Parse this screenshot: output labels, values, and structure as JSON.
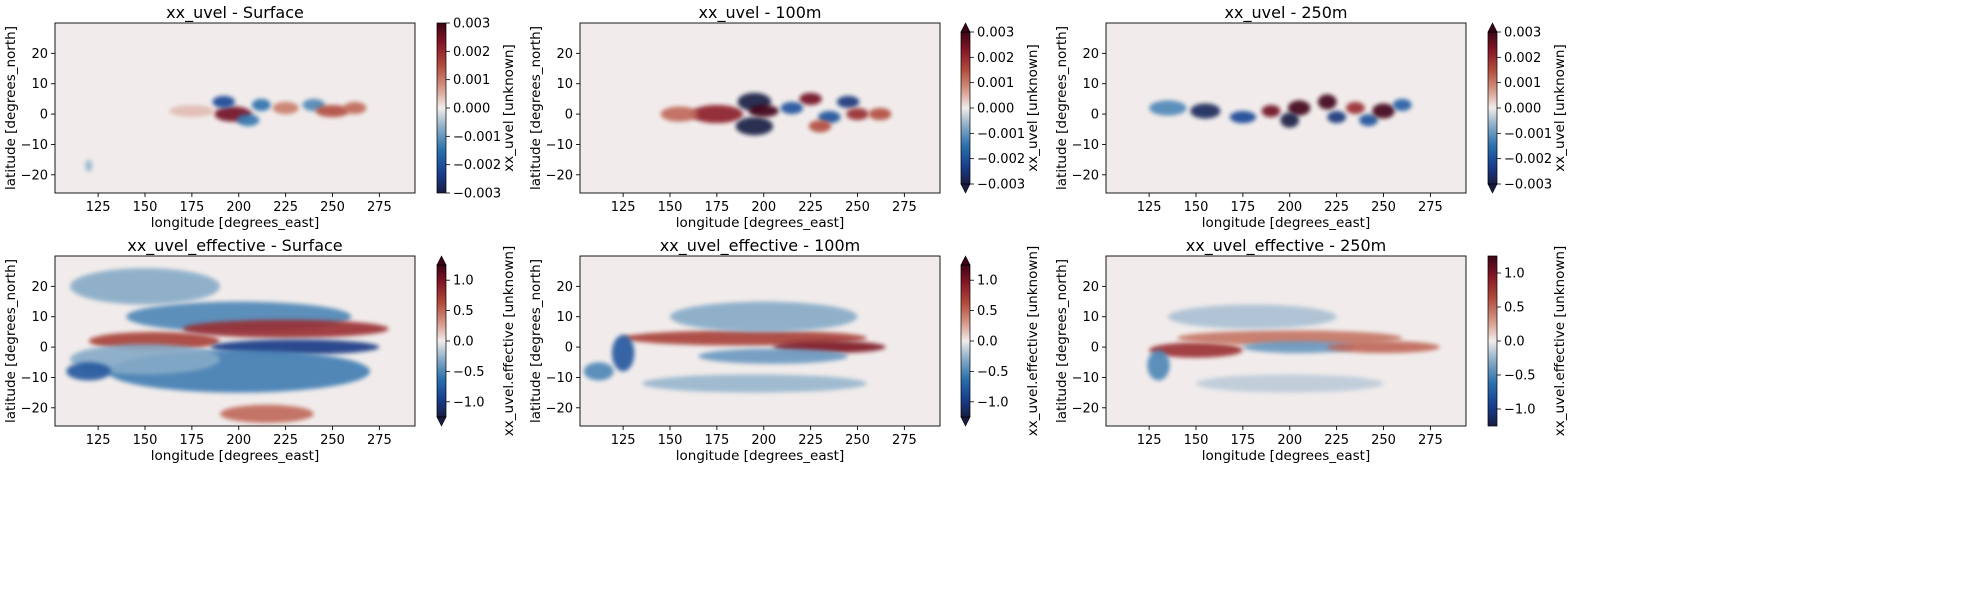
{
  "chart_data": [
    {
      "type": "heatmap",
      "title": "xx_uvel - Surface",
      "xlabel": "longitude [degrees_east]",
      "ylabel": "latitude [degrees_north]",
      "xlim": [
        102,
        294
      ],
      "ylim": [
        -26,
        30
      ],
      "xticks": [
        125,
        150,
        175,
        200,
        225,
        250,
        275
      ],
      "yticks": [
        -20,
        -10,
        0,
        10,
        20
      ],
      "colorbar": {
        "label": "xx_uvel [unknown]",
        "range": [
          -0.003,
          0.003
        ],
        "ticks": [
          "0.003",
          "0.002",
          "0.001",
          "0.000",
          "−0.001",
          "−0.002",
          "−0.003"
        ],
        "extend": "neither"
      },
      "features": [
        {
          "lon": 197,
          "lat": 0,
          "value": 0.0025,
          "w": 10,
          "h": 2.5
        },
        {
          "lon": 192,
          "lat": 4,
          "value": -0.0022,
          "w": 6,
          "h": 2
        },
        {
          "lon": 212,
          "lat": 3,
          "value": -0.0015,
          "w": 5,
          "h": 2
        },
        {
          "lon": 205,
          "lat": -2,
          "value": -0.0014,
          "w": 6,
          "h": 2
        },
        {
          "lon": 225,
          "lat": 2,
          "value": 0.001,
          "w": 7,
          "h": 2
        },
        {
          "lon": 240,
          "lat": 3,
          "value": -0.0012,
          "w": 6,
          "h": 2
        },
        {
          "lon": 250,
          "lat": 1,
          "value": 0.0015,
          "w": 9,
          "h": 2
        },
        {
          "lon": 262,
          "lat": 2,
          "value": 0.0012,
          "w": 6,
          "h": 2
        },
        {
          "lon": 175,
          "lat": 1,
          "value": 0.0004,
          "w": 12,
          "h": 2
        },
        {
          "lon": 120,
          "lat": -17,
          "value": -0.0006,
          "w": 2,
          "h": 2
        }
      ]
    },
    {
      "type": "heatmap",
      "title": "xx_uvel - 100m",
      "xlabel": "longitude [degrees_east]",
      "ylabel": "latitude [degrees_north]",
      "xlim": [
        102,
        294
      ],
      "ylim": [
        -26,
        30
      ],
      "xticks": [
        125,
        150,
        175,
        200,
        225,
        250,
        275
      ],
      "yticks": [
        -20,
        -10,
        0,
        10,
        20
      ],
      "colorbar": {
        "label": "xx_uvel [unknown]",
        "range": [
          -0.003,
          0.003
        ],
        "ticks": [
          "0.003",
          "0.002",
          "0.001",
          "0.000",
          "−0.001",
          "−0.002",
          "−0.003"
        ],
        "extend": "both"
      },
      "features": [
        {
          "lon": 175,
          "lat": 0,
          "value": 0.0022,
          "w": 14,
          "h": 3
        },
        {
          "lon": 155,
          "lat": 0,
          "value": 0.0012,
          "w": 10,
          "h": 2.5
        },
        {
          "lon": 195,
          "lat": 4,
          "value": -0.003,
          "w": 9,
          "h": 3
        },
        {
          "lon": 195,
          "lat": -4,
          "value": -0.003,
          "w": 10,
          "h": 3
        },
        {
          "lon": 200,
          "lat": 1,
          "value": 0.003,
          "w": 8,
          "h": 2
        },
        {
          "lon": 215,
          "lat": 2,
          "value": -0.002,
          "w": 6,
          "h": 2
        },
        {
          "lon": 225,
          "lat": 5,
          "value": 0.0025,
          "w": 6,
          "h": 2
        },
        {
          "lon": 235,
          "lat": -1,
          "value": -0.002,
          "w": 6,
          "h": 2
        },
        {
          "lon": 245,
          "lat": 4,
          "value": -0.0025,
          "w": 6,
          "h": 2
        },
        {
          "lon": 250,
          "lat": 0,
          "value": 0.002,
          "w": 6,
          "h": 2
        },
        {
          "lon": 262,
          "lat": 0,
          "value": 0.0015,
          "w": 6,
          "h": 2
        },
        {
          "lon": 230,
          "lat": -4,
          "value": 0.0015,
          "w": 6,
          "h": 2
        }
      ]
    },
    {
      "type": "heatmap",
      "title": "xx_uvel - 250m",
      "xlabel": "longitude [degrees_east]",
      "ylabel": "latitude [degrees_north]",
      "xlim": [
        102,
        294
      ],
      "ylim": [
        -26,
        30
      ],
      "xticks": [
        125,
        150,
        175,
        200,
        225,
        250,
        275
      ],
      "yticks": [
        -20,
        -10,
        0,
        10,
        20
      ],
      "colorbar": {
        "label": "xx_uvel [unknown]",
        "range": [
          -0.003,
          0.003
        ],
        "ticks": [
          "0.003",
          "0.002",
          "0.001",
          "0.000",
          "−0.001",
          "−0.002",
          "−0.003"
        ],
        "extend": "both"
      },
      "features": [
        {
          "lon": 135,
          "lat": 2,
          "value": -0.0012,
          "w": 10,
          "h": 2.5
        },
        {
          "lon": 155,
          "lat": 1,
          "value": -0.0028,
          "w": 8,
          "h": 2.5
        },
        {
          "lon": 175,
          "lat": -1,
          "value": -0.0022,
          "w": 7,
          "h": 2
        },
        {
          "lon": 190,
          "lat": 1,
          "value": 0.0025,
          "w": 5,
          "h": 2
        },
        {
          "lon": 205,
          "lat": 2,
          "value": 0.003,
          "w": 6,
          "h": 2.5
        },
        {
          "lon": 200,
          "lat": -2,
          "value": -0.003,
          "w": 5,
          "h": 2.5
        },
        {
          "lon": 220,
          "lat": 4,
          "value": 0.003,
          "w": 5,
          "h": 2.5
        },
        {
          "lon": 225,
          "lat": -1,
          "value": -0.0025,
          "w": 5,
          "h": 2
        },
        {
          "lon": 235,
          "lat": 2,
          "value": 0.002,
          "w": 5,
          "h": 2
        },
        {
          "lon": 242,
          "lat": -2,
          "value": -0.002,
          "w": 5,
          "h": 2
        },
        {
          "lon": 250,
          "lat": 1,
          "value": 0.003,
          "w": 6,
          "h": 2.5
        },
        {
          "lon": 260,
          "lat": 3,
          "value": -0.0018,
          "w": 5,
          "h": 2
        }
      ]
    },
    {
      "type": "heatmap",
      "title": "xx_uvel_effective - Surface",
      "xlabel": "longitude [degrees_east]",
      "ylabel": "latitude [degrees_north]",
      "xlim": [
        102,
        294
      ],
      "ylim": [
        -26,
        30
      ],
      "xticks": [
        125,
        150,
        175,
        200,
        225,
        250,
        275
      ],
      "yticks": [
        -20,
        -10,
        0,
        10,
        20
      ],
      "colorbar": {
        "label": "xx_uvel.effective [unknown]",
        "range": [
          -1.25,
          1.25
        ],
        "ticks": [
          "1.0",
          "0.5",
          "0.0",
          "−0.5",
          "−1.0"
        ],
        "extend": "both"
      },
      "features": [
        {
          "lon": 200,
          "lat": 10,
          "value": -0.5,
          "w": 60,
          "h": 5
        },
        {
          "lon": 155,
          "lat": 2,
          "value": 0.7,
          "w": 35,
          "h": 3
        },
        {
          "lon": 225,
          "lat": 6,
          "value": 0.8,
          "w": 55,
          "h": 3
        },
        {
          "lon": 230,
          "lat": 0,
          "value": -1.0,
          "w": 45,
          "h": 2.5
        },
        {
          "lon": 200,
          "lat": -8,
          "value": -0.55,
          "w": 70,
          "h": 7
        },
        {
          "lon": 150,
          "lat": -4,
          "value": -0.3,
          "w": 40,
          "h": 5
        },
        {
          "lon": 120,
          "lat": -8,
          "value": -0.8,
          "w": 12,
          "h": 3
        },
        {
          "lon": 215,
          "lat": -22,
          "value": 0.5,
          "w": 25,
          "h": 3
        },
        {
          "lon": 150,
          "lat": 20,
          "value": -0.3,
          "w": 40,
          "h": 6
        }
      ]
    },
    {
      "type": "heatmap",
      "title": "xx_uvel_effective - 100m",
      "xlabel": "longitude [degrees_east]",
      "ylabel": "latitude [degrees_north]",
      "xlim": [
        102,
        294
      ],
      "ylim": [
        -26,
        30
      ],
      "xticks": [
        125,
        150,
        175,
        200,
        225,
        250,
        275
      ],
      "yticks": [
        -20,
        -10,
        0,
        10,
        20
      ],
      "colorbar": {
        "label": "xx_uvel.effective [unknown]",
        "range": [
          -1.25,
          1.25
        ],
        "ticks": [
          "1.0",
          "0.5",
          "0.0",
          "−0.5",
          "−1.0"
        ],
        "extend": "both"
      },
      "features": [
        {
          "lon": 190,
          "lat": 3,
          "value": 0.7,
          "w": 65,
          "h": 2.5
        },
        {
          "lon": 235,
          "lat": 0,
          "value": 1.0,
          "w": 30,
          "h": 2
        },
        {
          "lon": 200,
          "lat": 10,
          "value": -0.3,
          "w": 50,
          "h": 5
        },
        {
          "lon": 205,
          "lat": -3,
          "value": -0.4,
          "w": 40,
          "h": 2.5
        },
        {
          "lon": 125,
          "lat": -2,
          "value": -0.8,
          "w": 6,
          "h": 6
        },
        {
          "lon": 112,
          "lat": -8,
          "value": -0.5,
          "w": 8,
          "h": 3
        },
        {
          "lon": 195,
          "lat": -12,
          "value": -0.25,
          "w": 60,
          "h": 3
        }
      ]
    },
    {
      "type": "heatmap",
      "title": "xx_uvel_effective - 250m",
      "xlabel": "longitude [degrees_east]",
      "ylabel": "latitude [degrees_north]",
      "xlim": [
        102,
        294
      ],
      "ylim": [
        -26,
        30
      ],
      "xticks": [
        125,
        150,
        175,
        200,
        225,
        250,
        275
      ],
      "yticks": [
        -20,
        -10,
        0,
        10,
        20
      ],
      "colorbar": {
        "label": "xx_uvel.effective [unknown]",
        "range": [
          -1.25,
          1.25
        ],
        "ticks": [
          "1.0",
          "0.5",
          "0.0",
          "−0.5",
          "−1.0"
        ],
        "extend": "neither"
      },
      "features": [
        {
          "lon": 150,
          "lat": -1,
          "value": 0.8,
          "w": 25,
          "h": 2.5
        },
        {
          "lon": 200,
          "lat": 3,
          "value": 0.45,
          "w": 60,
          "h": 2.5
        },
        {
          "lon": 205,
          "lat": 0,
          "value": -0.4,
          "w": 30,
          "h": 2
        },
        {
          "lon": 250,
          "lat": 0,
          "value": 0.5,
          "w": 30,
          "h": 2
        },
        {
          "lon": 180,
          "lat": 10,
          "value": -0.2,
          "w": 45,
          "h": 4
        },
        {
          "lon": 130,
          "lat": -6,
          "value": -0.5,
          "w": 6,
          "h": 5
        },
        {
          "lon": 200,
          "lat": -12,
          "value": -0.15,
          "w": 50,
          "h": 3
        }
      ]
    }
  ]
}
